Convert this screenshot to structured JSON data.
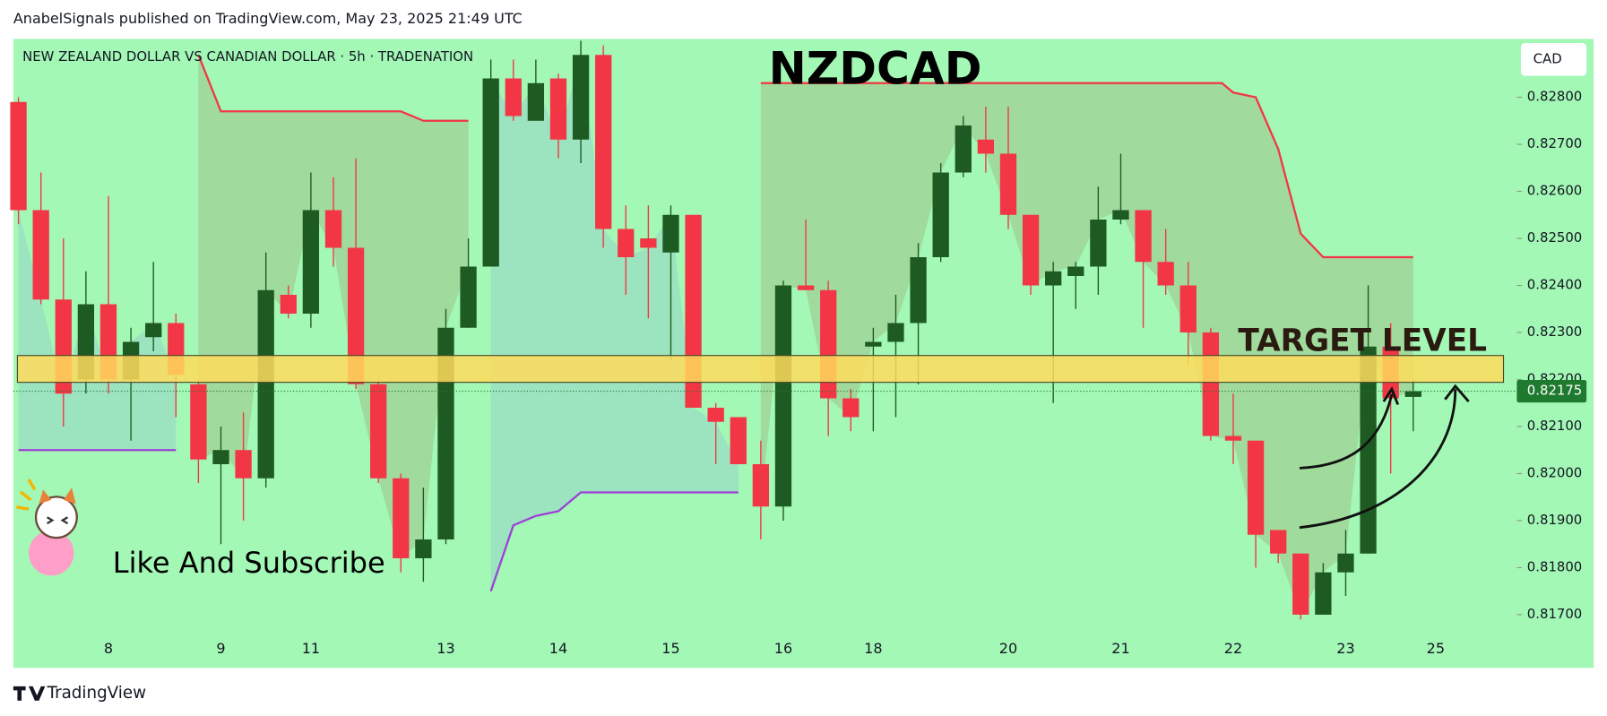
{
  "chart_data": {
    "type": "candlestick",
    "publisher_note": "AnabelSignals published on TradingView.com, May 23, 2025 21:49 UTC",
    "subtitle": "NEW ZEALAND DOLLAR VS CANADIAN DOLLAR · 5h · TRADENATION",
    "title": "NZDCAD",
    "currency": "CAD",
    "annotation": "Like And Subscribe",
    "brand": "TradingView",
    "background": "#a3f8b6",
    "up_color": "#1e5b22",
    "down_color": "#f23645",
    "categories": [
      null,
      null,
      null,
      null,
      "8",
      null,
      null,
      null,
      null,
      "9",
      null,
      null,
      null,
      "11",
      null,
      null,
      null,
      null,
      null,
      "13",
      null,
      null,
      null,
      null,
      "14",
      null,
      null,
      null,
      null,
      "15",
      null,
      null,
      null,
      null,
      "16",
      null,
      null,
      null,
      "18",
      null,
      null,
      null,
      null,
      null,
      "20",
      null,
      null,
      null,
      null,
      "21",
      null,
      null,
      null,
      null,
      "22",
      null,
      null,
      null,
      null,
      "23",
      null,
      null,
      null,
      "25"
    ],
    "open": [
      0.8279,
      0.8256,
      0.8237,
      0.822,
      0.8236,
      0.822,
      0.8229,
      0.8232,
      0.8219,
      0.8202,
      0.8205,
      0.8199,
      0.8238,
      0.8234,
      0.8256,
      0.8248,
      0.8219,
      0.8199,
      0.8182,
      0.8186,
      0.8231,
      0.8244,
      0.8284,
      0.8275,
      0.8284,
      0.8271,
      0.8289,
      0.8252,
      0.825,
      0.8247,
      0.8255,
      0.8214,
      0.8212,
      0.8202,
      0.8193,
      0.824,
      0.8239,
      0.8216,
      0.8227,
      0.8228,
      0.8232,
      0.8246,
      0.8264,
      0.8271,
      0.8268,
      0.8255,
      0.824,
      0.8242,
      0.8244,
      0.8254,
      0.8256,
      0.8245,
      0.824,
      0.823,
      0.8208,
      0.8207,
      0.8188,
      0.8183,
      0.817,
      0.8179,
      0.8183,
      0.8227,
      0.82163,
      null
    ],
    "high": [
      0.828,
      0.8264,
      0.825,
      0.8243,
      0.8259,
      0.8231,
      0.8245,
      0.8234,
      0.822,
      0.821,
      0.8213,
      0.8247,
      0.824,
      0.8264,
      0.8263,
      0.8267,
      0.822,
      0.82,
      0.8197,
      0.8235,
      0.825,
      0.8288,
      0.8288,
      0.8288,
      0.8285,
      0.8292,
      0.8291,
      0.8257,
      0.8257,
      0.8257,
      0.8255,
      0.8215,
      0.8212,
      0.8207,
      0.8241,
      0.8254,
      0.8241,
      0.8218,
      0.8231,
      0.8238,
      0.8249,
      0.8266,
      0.8276,
      0.8278,
      0.8278,
      0.8255,
      0.8245,
      0.8245,
      0.8261,
      0.8268,
      0.8256,
      0.8252,
      0.8245,
      0.8231,
      0.8217,
      0.8207,
      0.8188,
      0.8183,
      0.8181,
      0.8188,
      0.824,
      0.8232,
      0.822,
      null
    ],
    "low": [
      0.8253,
      0.8236,
      0.821,
      0.8217,
      0.8217,
      0.8207,
      0.8226,
      0.8212,
      0.8198,
      0.8185,
      0.819,
      0.8197,
      0.8233,
      0.8231,
      0.8244,
      0.8218,
      0.8198,
      0.8179,
      0.8177,
      0.8185,
      0.8231,
      0.8244,
      0.8275,
      0.8275,
      0.8267,
      0.8266,
      0.8248,
      0.8238,
      0.8233,
      0.8224,
      0.8214,
      0.8202,
      0.8202,
      0.8186,
      0.819,
      0.8239,
      0.8208,
      0.8209,
      0.8209,
      0.8212,
      0.8219,
      0.8245,
      0.8263,
      0.8264,
      0.8252,
      0.8238,
      0.8215,
      0.8235,
      0.8238,
      0.8253,
      0.8231,
      0.8238,
      0.8223,
      0.8207,
      0.8202,
      0.818,
      0.8181,
      0.8169,
      0.817,
      0.8174,
      0.8183,
      0.82,
      0.8209,
      null
    ],
    "close": [
      0.8256,
      0.8237,
      0.8217,
      0.8236,
      0.822,
      0.8228,
      0.8232,
      0.8221,
      0.8203,
      0.8205,
      0.8199,
      0.8239,
      0.8234,
      0.8256,
      0.8248,
      0.8219,
      0.8199,
      0.8182,
      0.8186,
      0.8231,
      0.8244,
      0.8284,
      0.8276,
      0.8283,
      0.8271,
      0.8289,
      0.8252,
      0.8246,
      0.8248,
      0.8255,
      0.8214,
      0.8211,
      0.8202,
      0.8193,
      0.824,
      0.8239,
      0.8216,
      0.8212,
      0.8228,
      0.8232,
      0.8246,
      0.8264,
      0.8274,
      0.8268,
      0.8255,
      0.824,
      0.8243,
      0.8244,
      0.8254,
      0.8256,
      0.8245,
      0.824,
      0.823,
      0.8208,
      0.8207,
      0.8187,
      0.8183,
      0.817,
      0.8179,
      0.8183,
      0.8227,
      0.8216,
      0.82175,
      null
    ],
    "ylim": [
      0.81587,
      0.82924
    ],
    "yticks": [
      {
        "value": 0.817,
        "label": "0.81700"
      },
      {
        "value": 0.818,
        "label": "0.81800"
      },
      {
        "value": 0.819,
        "label": "0.81900"
      },
      {
        "value": 0.82,
        "label": "0.82000"
      },
      {
        "value": 0.821,
        "label": "0.82100"
      },
      {
        "value": 0.822,
        "label": "0.82200"
      },
      {
        "value": 0.823,
        "label": "0.82300"
      },
      {
        "value": 0.824,
        "label": "0.82400"
      },
      {
        "value": 0.825,
        "label": "0.82500"
      },
      {
        "value": 0.826,
        "label": "0.82600"
      },
      {
        "value": 0.827,
        "label": "0.82700"
      },
      {
        "value": 0.828,
        "label": "0.82800"
      }
    ],
    "last_price": {
      "value": 0.82175,
      "label": "0.82175"
    },
    "last_price_color": "#1e7a2e",
    "target_zone": {
      "label": "TARGET LEVEL",
      "range": [
        0.82194,
        0.82251
      ],
      "color": "#ffdc5c"
    },
    "upper_color": "#f23645",
    "upper_line": [
      {
        "x": [
          8,
          9,
          17,
          18,
          20
        ],
        "values": [
          0.8289,
          0.8277,
          0.8277,
          0.8275,
          0.8275
        ]
      },
      {
        "x": [
          33,
          53.5,
          54,
          55,
          56,
          57,
          58,
          62
        ],
        "values": [
          0.8283,
          0.8283,
          0.8281,
          0.828,
          0.8269,
          0.8251,
          0.8246,
          0.8246
        ]
      }
    ],
    "lower_color": "#9c3fd6",
    "lower_line": [
      {
        "x": [
          0,
          7
        ],
        "values": [
          0.8205,
          0.8205
        ]
      },
      {
        "x": [
          21,
          22,
          23,
          24,
          25,
          32
        ],
        "values": [
          0.8175,
          0.8189,
          0.8191,
          0.8192,
          0.8196,
          0.8196
        ]
      }
    ]
  }
}
